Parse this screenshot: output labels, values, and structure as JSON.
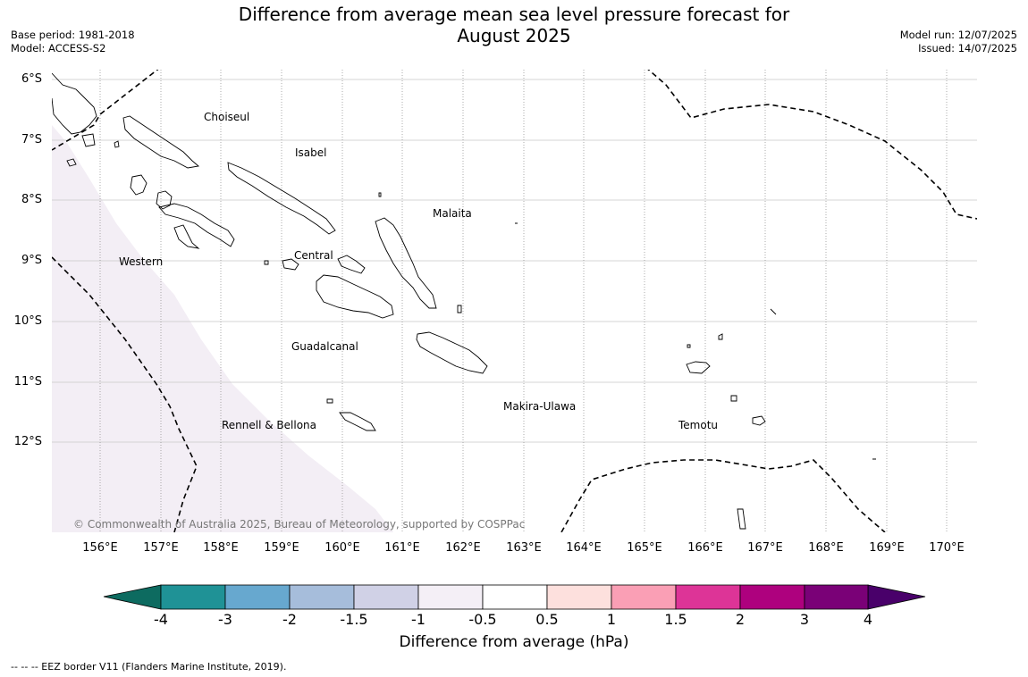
{
  "title_line1": "Difference from average mean sea level pressure forecast for",
  "title_line2": "August 2025",
  "meta_left": {
    "base_period": "Base period: 1981-2018",
    "model": "Model: ACCESS-S2"
  },
  "meta_right": {
    "model_run": "Model run: 12/07/2025",
    "issued": "Issued: 14/07/2025"
  },
  "map": {
    "lat_labels": [
      "6°S",
      "7°S",
      "8°S",
      "9°S",
      "10°S",
      "11°S",
      "12°S"
    ],
    "lon_labels": [
      "156°E",
      "157°E",
      "158°E",
      "159°E",
      "160°E",
      "161°E",
      "162°E",
      "163°E",
      "164°E",
      "165°E",
      "166°E",
      "167°E",
      "168°E",
      "169°E",
      "170°E"
    ],
    "places": [
      {
        "name": "Choiseul"
      },
      {
        "name": "Isabel"
      },
      {
        "name": "Malaita"
      },
      {
        "name": "Western"
      },
      {
        "name": "Central"
      },
      {
        "name": "Guadalcanal"
      },
      {
        "name": "Makira-Ulawa"
      },
      {
        "name": "Rennell & Bellona"
      },
      {
        "name": "Temotu"
      }
    ],
    "copyright": "© Commonwealth of Australia 2025, Bureau of Meteorology, supported by COSPPac"
  },
  "colorbar": {
    "title": "Difference from average (hPa)",
    "ticks": [
      "-4",
      "-3",
      "-2",
      "-1.5",
      "-1",
      "-0.5",
      "0.5",
      "1",
      "1.5",
      "2",
      "3",
      "4"
    ],
    "colors": [
      "#0d6b60",
      "#1f9296",
      "#67a8cf",
      "#a6bddb",
      "#d0d1e6",
      "#f4eff6",
      "#ffffff",
      "#fde0dd",
      "#fa9fb5",
      "#dd3497",
      "#ae017e",
      "#7a0177",
      "#49006a"
    ]
  },
  "footer": "--  --  -- EEZ border V11 (Flanders Marine Institute, 2019)."
}
